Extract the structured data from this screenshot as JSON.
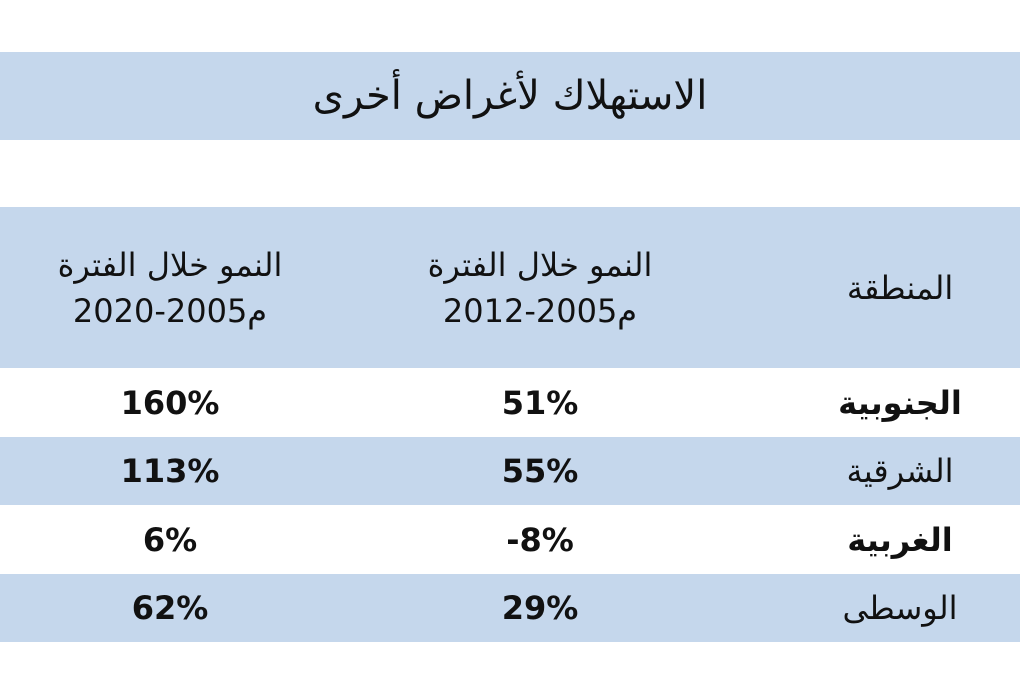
{
  "title": "الاستهلاك لأغراض أخرى",
  "table": {
    "header": [
      [
        "المنطقة"
      ],
      [
        "النمو خلال الفترة",
        "2012-2005م"
      ],
      [
        "النمو خلال الفترة",
        "2020-2005م"
      ]
    ],
    "rows": [
      [
        "الجنوبية",
        "51%",
        "160%"
      ],
      [
        "الشرقية",
        "55%",
        "113%"
      ],
      [
        "الغربية",
        "-8%",
        "6%"
      ],
      [
        "الوسطى",
        "29%",
        "62%"
      ]
    ]
  }
}
